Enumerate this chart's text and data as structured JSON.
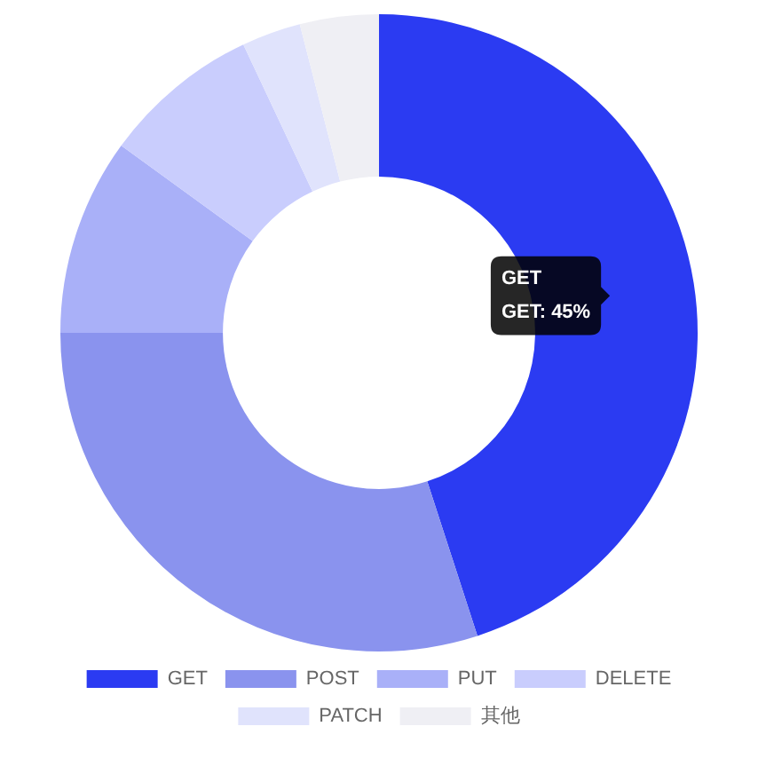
{
  "chart_data": {
    "type": "donut",
    "categories": [
      "GET",
      "POST",
      "PUT",
      "DELETE",
      "PATCH",
      "其他"
    ],
    "values": [
      45,
      30,
      10,
      8,
      3,
      4
    ],
    "colors": [
      "#2b3bf2",
      "#8a93ee",
      "#a9b0f8",
      "#c9cdfd",
      "#e0e3fc",
      "#efeff4"
    ],
    "value_labels": [
      "GET: 45%",
      null,
      null,
      null,
      null,
      null
    ],
    "legend": "bottom"
  }
}
